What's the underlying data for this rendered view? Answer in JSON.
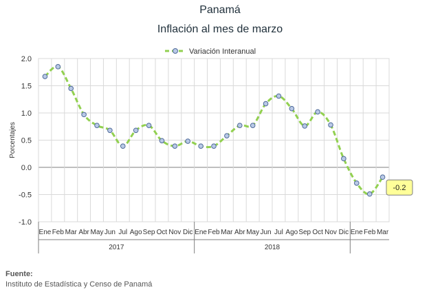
{
  "header": {
    "country": "Panamá",
    "title": "Inflación al mes de marzo"
  },
  "footer": {
    "source_label": "Fuente:",
    "source_text": "Instituto de Estadística y Censo de Panamá"
  },
  "colors": {
    "line": "#92d050",
    "marker_fill": "#b9c9e6",
    "marker_stroke": "#4f6a99",
    "grid": "#d9d9d9",
    "axis": "#7f7f7f",
    "callout_fill": "#ffff99"
  },
  "chart_data": {
    "type": "line",
    "title": "",
    "xlabel": "",
    "ylabel": "Porcentajes",
    "ylim": [
      -1.0,
      2.0
    ],
    "yticks": [
      "2.0",
      "1.5",
      "1.0",
      "0.5",
      "0.0",
      "-0.5",
      "-1.0"
    ],
    "grid": true,
    "legend_position": "top",
    "categories": [
      "Ene",
      "Feb",
      "Mar",
      "Abr",
      "May",
      "Jun",
      "Jul",
      "Ago",
      "Sep",
      "Oct",
      "Nov",
      "Dic",
      "Ene",
      "Feb",
      "Mar",
      "Abr",
      "May",
      "Jun",
      "Jul",
      "Ago",
      "Sep",
      "Oct",
      "Nov",
      "Dic",
      "Ene",
      "Feb",
      "Mar"
    ],
    "groups": [
      {
        "label": "2017",
        "count": 12
      },
      {
        "label": "2018",
        "count": 12
      },
      {
        "label": "",
        "count": 3
      }
    ],
    "series": [
      {
        "name": "Variación Interanual",
        "values": [
          1.67,
          1.85,
          1.45,
          0.97,
          0.77,
          0.68,
          0.39,
          0.68,
          0.77,
          0.49,
          0.39,
          0.48,
          0.39,
          0.39,
          0.58,
          0.77,
          0.77,
          1.17,
          1.31,
          1.08,
          0.76,
          1.02,
          0.78,
          0.16,
          -0.29,
          -0.49,
          -0.18
        ]
      }
    ],
    "annotation": {
      "text": "-0.2",
      "index": 26
    }
  }
}
